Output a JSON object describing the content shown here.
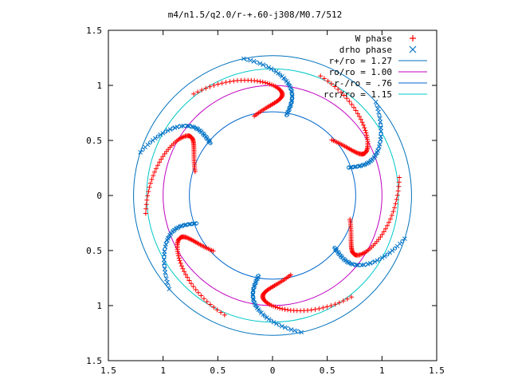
{
  "chart_data": {
    "type": "scatter",
    "title": "m4/n1.5/q2.0/r-+.60-j308/M0.7/512",
    "xlim": [
      -1.5,
      1.5
    ],
    "ylim": [
      -1.5,
      1.5
    ],
    "x_ticks": [
      -1.5,
      -1,
      -0.5,
      0,
      0.5,
      1,
      1.5
    ],
    "x_tick_labels": [
      "1.5",
      "1",
      "0.5",
      "0",
      "0.5",
      "1",
      "1.5"
    ],
    "y_ticks": [
      1.5,
      1,
      0.5,
      0,
      -0.5,
      -1,
      -1.5
    ],
    "y_tick_labels": [
      "1.5",
      "1",
      "0.5",
      "0",
      "0.5",
      "1",
      "1.5"
    ],
    "grid": false,
    "legend_position": "top-right",
    "series": [
      {
        "name": "W phase",
        "marker": "+",
        "color": "#ff0000"
      },
      {
        "name": "drho phase",
        "marker": "x",
        "color": "#0072c6"
      }
    ],
    "circles": [
      {
        "name": "r+/ro = 1.27",
        "r": 1.27,
        "color": "#0072bd"
      },
      {
        "name": "ro/ro = 1.00",
        "r": 1.0,
        "color": "#c000c0"
      },
      {
        "name": "r-/ro = .76",
        "r": 0.76,
        "color": "#0066cc"
      },
      {
        "name": "rcr/ro = 1.15",
        "r": 1.15,
        "color": "#00c8c8"
      }
    ]
  }
}
